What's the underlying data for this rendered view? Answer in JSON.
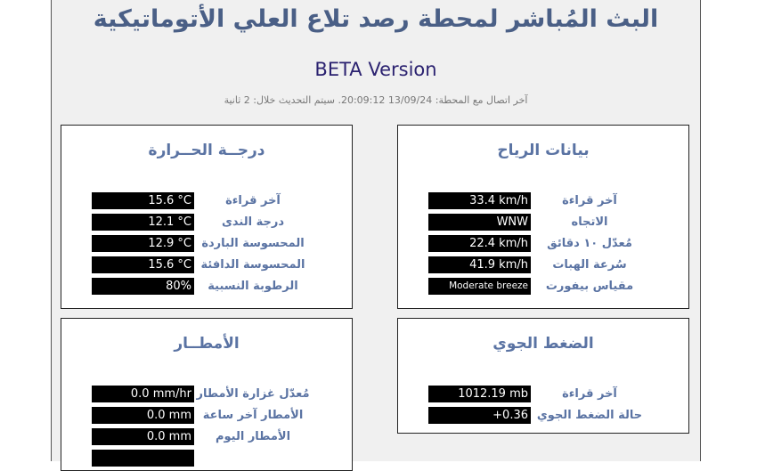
{
  "header": {
    "title": "البث المُباشر لمحطة رصد تلاع العلي الأتوماتيكية",
    "beta": "BETA Version",
    "status": "آخر اتصال مع المحطة: 13/09/24 20:09:12. سيتم التحديث خلال: 2 ثانية"
  },
  "wind": {
    "title": "بيانات الرياح",
    "rows": [
      {
        "label": "آخر قراءة",
        "value": "33.4 km/h"
      },
      {
        "label": "الاتجاه",
        "value": "WNW"
      },
      {
        "label": "مُعدّل ١٠ دقائق",
        "value": "22.4 km/h"
      },
      {
        "label": "سُرعة الهبات",
        "value": "41.9 km/h"
      },
      {
        "label": "مقياس بيفورت",
        "value": "Moderate breeze"
      }
    ]
  },
  "temperature": {
    "title": "درجــة الحــرارة",
    "rows": [
      {
        "label": "آخر قراءة",
        "value": "15.6 °C"
      },
      {
        "label": "درجة الندى",
        "value": "12.1 °C"
      },
      {
        "label": "المحسوسة الباردة",
        "value": "12.9 °C"
      },
      {
        "label": "المحسوسة الدافئة",
        "value": "15.6 °C"
      },
      {
        "label": "الرطوبة النسبية",
        "value": "80%"
      }
    ]
  },
  "pressure": {
    "title": "الضغط الجوي",
    "rows": [
      {
        "label": "آخر قراءة",
        "value": "1012.19 mb"
      },
      {
        "label": "حالة الضغط الجوي",
        "value": "+0.36"
      }
    ]
  },
  "rain": {
    "title": "الأمطــار",
    "rows": [
      {
        "label": "مُعدّل غزارة الأمطار",
        "value": "0.0 mm/hr"
      },
      {
        "label": "الأمطار آخر ساعة",
        "value": "0.0 mm"
      },
      {
        "label": "الأمطار اليوم",
        "value": "0.0 mm"
      }
    ]
  }
}
